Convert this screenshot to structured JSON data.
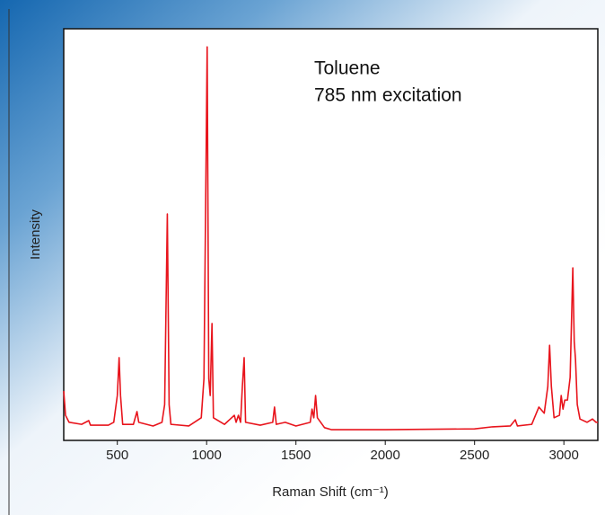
{
  "chart_data": {
    "type": "line",
    "annotations": [
      "Toluene",
      "785 nm excitation"
    ],
    "x_label": "Raman Shift (cm⁻¹)",
    "y_label": "Intensity",
    "xlim": [
      200,
      3190
    ],
    "ylim": [
      0,
      100
    ],
    "xticks": [
      500,
      1000,
      1500,
      2000,
      2500,
      3000
    ],
    "x": [
      200,
      210,
      230,
      300,
      340,
      350,
      450,
      480,
      500,
      510,
      518,
      530,
      590,
      610,
      620,
      700,
      750,
      765,
      780,
      790,
      800,
      900,
      970,
      985,
      1003,
      1012,
      1020,
      1030,
      1038,
      1100,
      1155,
      1165,
      1178,
      1190,
      1200,
      1210,
      1218,
      1300,
      1370,
      1380,
      1390,
      1440,
      1500,
      1580,
      1590,
      1600,
      1610,
      1620,
      1660,
      1700,
      2000,
      2500,
      2600,
      2700,
      2728,
      2740,
      2820,
      2860,
      2890,
      2910,
      2920,
      2930,
      2945,
      2975,
      2985,
      2995,
      3005,
      3020,
      3035,
      3050,
      3058,
      3065,
      3075,
      3090,
      3130,
      3160,
      3180,
      3190
    ],
    "series": [
      {
        "name": "Toluene",
        "color": "#e8141c",
        "values": [
          12,
          6.1,
          4.4,
          3.9,
          4.8,
          3.7,
          3.7,
          4.4,
          10.9,
          20.1,
          10.9,
          3.9,
          3.9,
          7,
          4.4,
          3.5,
          4.4,
          8.7,
          55,
          8.7,
          3.9,
          3.5,
          5.5,
          15,
          95.6,
          15,
          10.9,
          28.4,
          5.5,
          3.9,
          6.1,
          4.4,
          6.1,
          4.4,
          13.1,
          20.1,
          4.4,
          3.7,
          4.4,
          8.1,
          3.9,
          4.4,
          3.5,
          4.4,
          7.6,
          5.5,
          10.9,
          5.5,
          3.1,
          2.6,
          2.6,
          2.8,
          3.3,
          3.5,
          5,
          3.5,
          3.9,
          8.1,
          6.6,
          13.1,
          23.1,
          13.1,
          5.5,
          6.1,
          10.9,
          7.6,
          9.8,
          9.8,
          15.3,
          41.9,
          24,
          19.7,
          8.7,
          5.2,
          4.4,
          5.2,
          4.4,
          4.4
        ]
      }
    ]
  }
}
